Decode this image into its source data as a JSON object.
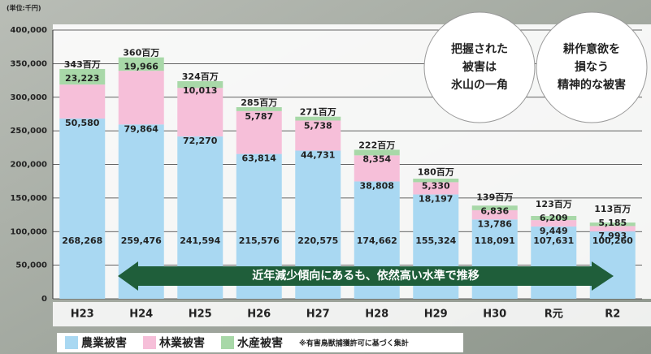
{
  "chart_data": {
    "type": "stacked_bar",
    "unit_label": "(単位:千円)",
    "categories": [
      "H23",
      "H24",
      "H25",
      "H26",
      "H27",
      "H28",
      "H29",
      "H30",
      "R元",
      "R2"
    ],
    "series": [
      {
        "name": "農業被害",
        "color": "#a9d8f2",
        "values": [
          268268,
          259476,
          241594,
          215576,
          220575,
          174662,
          155324,
          118091,
          107631,
          100260
        ],
        "value_labels": [
          "268,268",
          "259,476",
          "241,594",
          "215,576",
          "220,575",
          "174,662",
          "155,324",
          "118,091",
          "107,631",
          "100,260"
        ]
      },
      {
        "name": "林業被害",
        "color": "#f6bfd9",
        "values": [
          50580,
          79864,
          72270,
          63814,
          44731,
          38808,
          18197,
          13786,
          9449,
          7993
        ],
        "value_labels": [
          "50,580",
          "79,864",
          "72,270",
          "63,814",
          "44,731",
          "38,808",
          "18,197",
          "13,786",
          "9,449",
          "7,993"
        ]
      },
      {
        "name": "水産被害",
        "color": "#a8d8a8",
        "values": [
          23223,
          19966,
          10013,
          5787,
          5738,
          8354,
          5330,
          6836,
          6209,
          5185
        ],
        "value_labels": [
          "23,223",
          "19,966",
          "10,013",
          "5,787",
          "5,738",
          "8,354",
          "5,330",
          "6,836",
          "6,209",
          "5,185"
        ]
      }
    ],
    "total_labels": [
      "343百万",
      "360百万",
      "324百万",
      "285百万",
      "271百万",
      "222百万",
      "180百万",
      "139百万",
      "123百万",
      "113百万"
    ],
    "ylim": [
      0,
      400000
    ],
    "yticks": [
      0,
      {
        "value": 50000,
        "label": "50,000"
      },
      {
        "value": 100000,
        "label": "100,000"
      },
      {
        "value": 150000,
        "label": "150,000"
      },
      {
        "value": 200000,
        "label": "200,000"
      },
      {
        "value": 250000,
        "label": "250,000"
      },
      {
        "value": 300000,
        "label": "300,000"
      },
      {
        "value": 350000,
        "label": "350,000"
      },
      {
        "value": 400000,
        "label": "400,000"
      }
    ],
    "grid": true,
    "arrow_text": "近年減少傾向にあるも、依然高い水準で推移",
    "callouts": [
      [
        "把握された",
        "被害は",
        "氷山の一角"
      ],
      [
        "耕作意欲を",
        "損なう",
        "精神的な被害"
      ]
    ],
    "footnote": "※有害鳥獣捕獲許可に基づく集計"
  }
}
